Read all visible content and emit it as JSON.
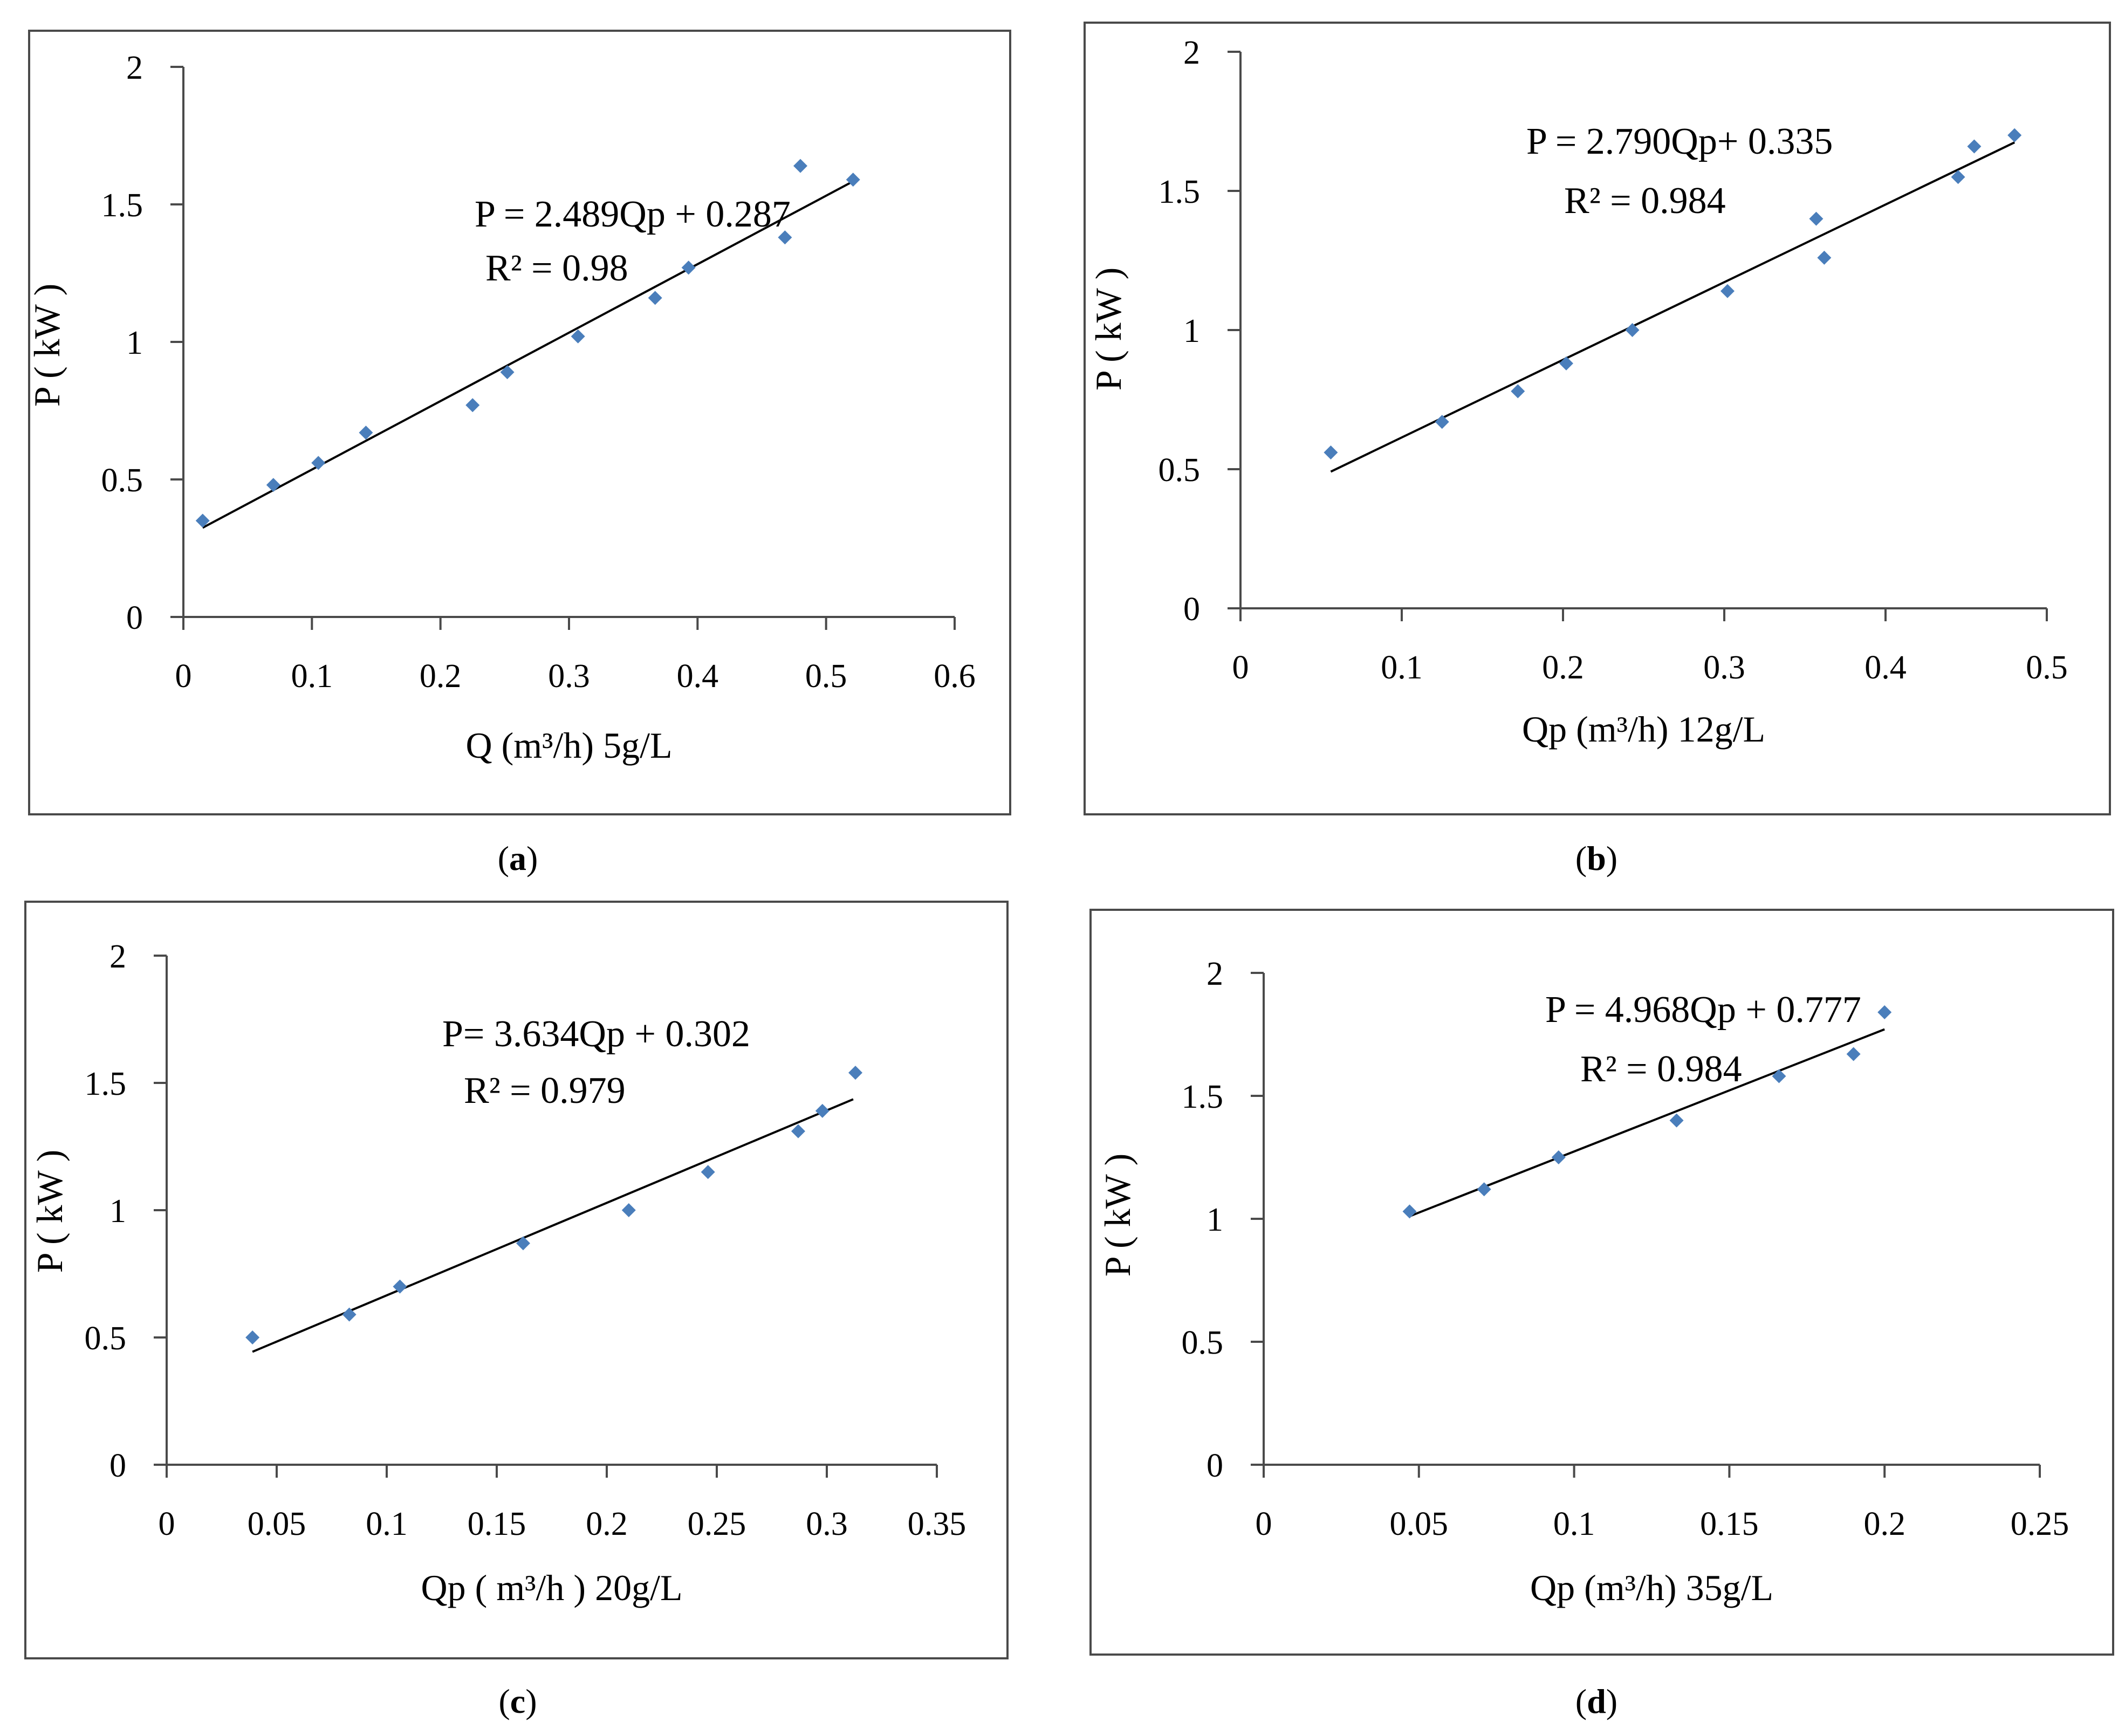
{
  "colors": {
    "marker": "#4a7ebb",
    "line": "#000000",
    "axis": "#4a4a4a",
    "frame": "#4a4a4a"
  },
  "chart_data": [
    {
      "panel": "a",
      "type": "scatter",
      "caption": "a",
      "xlabel": "Q (m³/h) 5g/L",
      "ylabel": "P ( kW )",
      "xlim": [
        0,
        0.6
      ],
      "ylim": [
        0,
        2
      ],
      "xticks": [
        "0",
        "0.1",
        "0.2",
        "0.3",
        "0.4",
        "0.5",
        "0.6"
      ],
      "yticks": [
        "0",
        "0.5",
        "1",
        "1.5",
        "2"
      ],
      "equation": "P = 2.489Qp + 0.287",
      "r2": "R² = 0.98",
      "slope": 2.489,
      "intercept": 0.287,
      "fit_x": [
        0.015,
        0.52
      ],
      "x": [
        0.015,
        0.07,
        0.105,
        0.142,
        0.225,
        0.252,
        0.307,
        0.367,
        0.393,
        0.468,
        0.48,
        0.521
      ],
      "y": [
        0.35,
        0.48,
        0.56,
        0.67,
        0.77,
        0.89,
        1.02,
        1.16,
        1.27,
        1.38,
        1.64,
        1.59
      ]
    },
    {
      "panel": "b",
      "type": "scatter",
      "caption": "b",
      "xlabel": "Qp (m³/h) 12g/L",
      "ylabel": "P ( kW )",
      "xlim": [
        0,
        0.5
      ],
      "ylim": [
        0,
        2
      ],
      "xticks": [
        "0",
        "0.1",
        "0.2",
        "0.3",
        "0.4",
        "0.5"
      ],
      "yticks": [
        "0",
        "0.5",
        "1",
        "1.5",
        "2"
      ],
      "equation": "P = 2.790Qp+ 0.335",
      "r2": "R² = 0.984",
      "slope": 2.79,
      "intercept": 0.335,
      "fit_x": [
        0.056,
        0.48
      ],
      "x": [
        0.056,
        0.125,
        0.172,
        0.202,
        0.243,
        0.302,
        0.357,
        0.362,
        0.445,
        0.455,
        0.48
      ],
      "y": [
        0.56,
        0.67,
        0.78,
        0.88,
        1.0,
        1.14,
        1.4,
        1.26,
        1.55,
        1.66,
        1.7
      ]
    },
    {
      "panel": "c",
      "type": "scatter",
      "caption": "c",
      "xlabel": "Qp ( m³/h ) 20g/L",
      "ylabel": "P ( kW )",
      "xlim": [
        0,
        0.35
      ],
      "ylim": [
        0,
        2
      ],
      "xticks": [
        "0",
        "0.05",
        "0.1",
        "0.15",
        "0.2",
        "0.25",
        "0.3",
        "0.35"
      ],
      "yticks": [
        "0",
        "0.5",
        "1",
        "1.5",
        "2"
      ],
      "equation": "P= 3.634Qp + 0.302",
      "r2": "R² = 0.979",
      "slope": 3.634,
      "intercept": 0.302,
      "fit_x": [
        0.039,
        0.312
      ],
      "x": [
        0.039,
        0.083,
        0.106,
        0.162,
        0.21,
        0.246,
        0.287,
        0.298,
        0.313
      ],
      "y": [
        0.5,
        0.59,
        0.7,
        0.87,
        1.0,
        1.15,
        1.31,
        1.39,
        1.54
      ]
    },
    {
      "panel": "d",
      "type": "scatter",
      "caption": "d",
      "xlabel": "Qp (m³/h) 35g/L",
      "ylabel": "P ( kW )",
      "xlim": [
        0,
        0.25
      ],
      "ylim": [
        0,
        2
      ],
      "xticks": [
        "0",
        "0.05",
        "0.1",
        "0.15",
        "0.2",
        "0.25"
      ],
      "yticks": [
        "0",
        "0.5",
        "1",
        "1.5",
        "2"
      ],
      "equation": "P = 4.968Qp + 0.777",
      "r2": "R² = 0.984",
      "slope": 4.968,
      "intercept": 0.777,
      "fit_x": [
        0.047,
        0.2
      ],
      "x": [
        0.047,
        0.071,
        0.095,
        0.133,
        0.166,
        0.19,
        0.2
      ],
      "y": [
        1.03,
        1.12,
        1.25,
        1.4,
        1.58,
        1.67,
        1.84
      ]
    }
  ]
}
